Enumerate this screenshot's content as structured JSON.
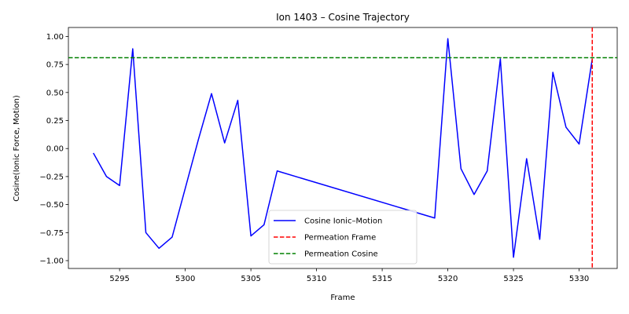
{
  "chart_data": {
    "type": "line",
    "title": "Ion 1403 – Cosine Trajectory",
    "xlabel": "Frame",
    "ylabel": "Cosine(Ionic Force, Motion)",
    "xlim": [
      5291.1,
      5332.9
    ],
    "ylim": [
      -1.07,
      1.08
    ],
    "xticks": [
      5295,
      5300,
      5305,
      5310,
      5315,
      5320,
      5325,
      5330
    ],
    "yticks": [
      -1.0,
      -0.75,
      -0.5,
      -0.25,
      0.0,
      0.25,
      0.5,
      0.75,
      1.0
    ],
    "ytick_labels": [
      "−1.00",
      "−0.75",
      "−0.50",
      "−0.25",
      "0.00",
      "0.25",
      "0.50",
      "0.75",
      "1.00"
    ],
    "grid": false,
    "legend_position": "lower-center",
    "series": [
      {
        "name": "Cosine Ionic–Motion",
        "color": "#0000ff",
        "style": "solid",
        "x": [
          5293,
          5294,
          5295,
          5296,
          5297,
          5298,
          5299,
          5301,
          5302,
          5303,
          5304,
          5305,
          5306,
          5307,
          5319,
          5320,
          5321,
          5322,
          5323,
          5324,
          5325,
          5326,
          5327,
          5328,
          5329,
          5330,
          5331
        ],
        "y": [
          -0.04,
          -0.25,
          -0.33,
          0.89,
          -0.75,
          -0.89,
          -0.79,
          0.08,
          0.49,
          0.05,
          0.43,
          -0.78,
          -0.68,
          -0.2,
          -0.62,
          0.98,
          -0.18,
          -0.41,
          -0.2,
          0.8,
          -0.97,
          -0.09,
          -0.81,
          0.68,
          0.19,
          0.04,
          0.8
        ]
      }
    ],
    "reference_lines": [
      {
        "name": "Permeation Frame",
        "orientation": "vertical",
        "value": 5331,
        "color": "#ff0000",
        "style": "dashed"
      },
      {
        "name": "Permeation Cosine",
        "orientation": "horizontal",
        "value": 0.81,
        "color": "#008000",
        "style": "dashed"
      }
    ]
  }
}
